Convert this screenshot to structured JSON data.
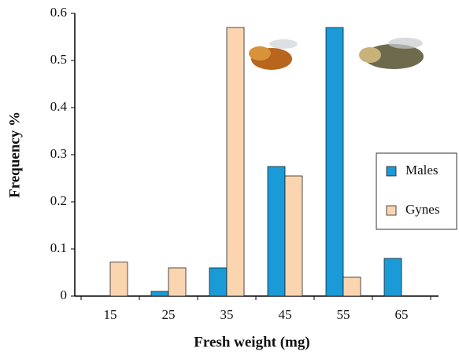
{
  "chart_data": {
    "type": "bar",
    "x_label": "Fresh weight (mg)",
    "y_label": "Frequency %",
    "categories": [
      "15",
      "25",
      "35",
      "45",
      "55",
      "65"
    ],
    "series": [
      {
        "name": "Males",
        "color": "#1a9ad6",
        "values": [
          null,
          0.01,
          0.06,
          0.275,
          0.57,
          0.08
        ]
      },
      {
        "name": "Gynes",
        "color": "#fbd5b0",
        "values": [
          0.072,
          0.06,
          0.57,
          0.255,
          0.04,
          null
        ]
      }
    ],
    "ylim": [
      0,
      0.6
    ],
    "yticks": [
      0,
      0.1,
      0.2,
      0.3,
      0.4,
      0.5,
      0.6
    ],
    "legend": "right"
  }
}
